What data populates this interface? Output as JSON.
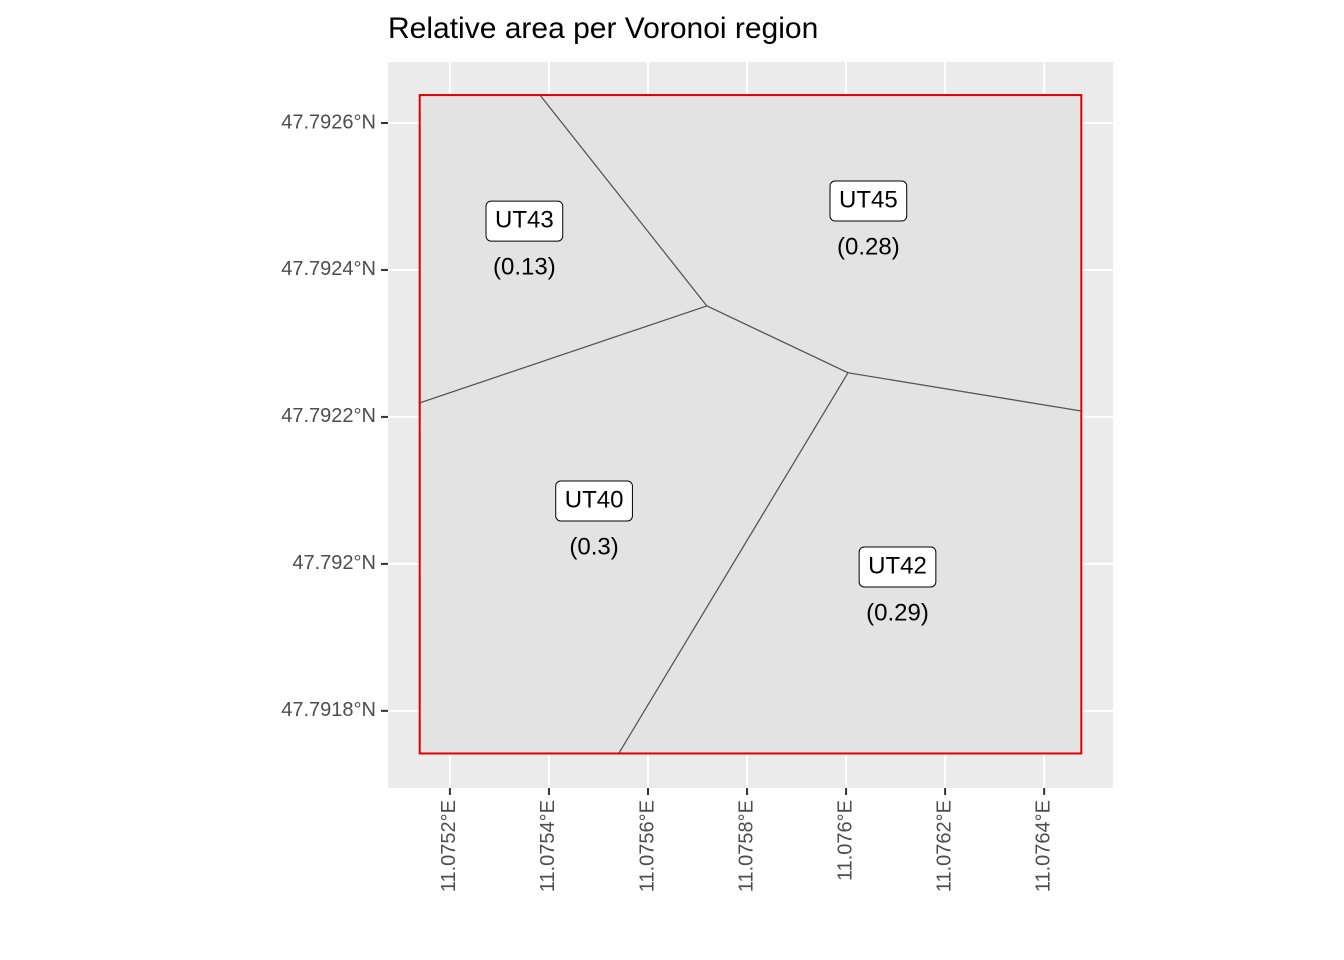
{
  "chart_data": {
    "type": "voronoi",
    "title": "Relative area per Voronoi region",
    "categories": [
      "UT43",
      "UT45",
      "UT40",
      "UT42"
    ],
    "values": [
      0.13,
      0.28,
      0.3,
      0.29
    ],
    "value_labels": [
      "(0.13)",
      "(0.28)",
      "(0.3)",
      "(0.29)"
    ],
    "regions": [
      {
        "lon": [
          11.075139,
          11.075382,
          11.075719,
          11.075139
        ],
        "lat": [
          47.792638,
          47.792638,
          47.792351,
          47.792219
        ]
      },
      {
        "lon": [
          11.075382,
          11.076475,
          11.076475,
          11.076004,
          11.075719
        ],
        "lat": [
          47.792638,
          47.792638,
          47.792208,
          47.79226,
          47.792351
        ]
      },
      {
        "lon": [
          11.075139,
          11.075719,
          11.076004,
          11.075541,
          11.075139
        ],
        "lat": [
          47.792219,
          47.792351,
          47.79226,
          47.791742,
          47.791742
        ]
      },
      {
        "lon": [
          11.076004,
          11.076475,
          11.076475,
          11.075541
        ],
        "lat": [
          47.79226,
          47.792208,
          47.791742,
          47.791742
        ]
      }
    ],
    "region_color": "#e3e3e3",
    "border_color": "#555555",
    "bbox": {
      "lon": [
        11.075139,
        11.076475
      ],
      "lat": [
        47.791742,
        47.792638
      ],
      "color": "#e00000"
    },
    "xlim": [
      11.075075,
      11.076539
    ],
    "ylim": [
      47.791695,
      47.792683
    ],
    "xticks": [
      {
        "value": 11.0752,
        "label": "11.0752°E"
      },
      {
        "value": 11.0754,
        "label": "11.0754°E"
      },
      {
        "value": 11.0756,
        "label": "11.0756°E"
      },
      {
        "value": 11.0758,
        "label": "11.0758°E"
      },
      {
        "value": 11.076,
        "label": "11.076°E"
      },
      {
        "value": 11.0762,
        "label": "11.0762°E"
      },
      {
        "value": 11.0764,
        "label": "11.0764°E"
      }
    ],
    "yticks": [
      {
        "value": 47.7918,
        "label": "47.7918°N"
      },
      {
        "value": 47.792,
        "label": "47.792°N"
      },
      {
        "value": 47.7922,
        "label": "47.7922°N"
      },
      {
        "value": 47.7924,
        "label": "47.7924°N"
      },
      {
        "value": 47.7926,
        "label": "47.7926°N"
      }
    ],
    "grid": true
  }
}
